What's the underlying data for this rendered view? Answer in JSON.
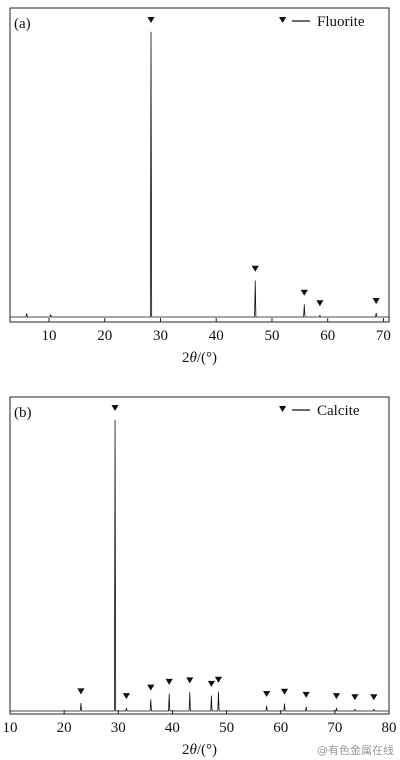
{
  "chart_data": [
    {
      "type": "line",
      "panel_label": "(a)",
      "xlabel": "2θ/(°)",
      "xlabel_parts": [
        "2",
        "θ",
        "/(°)"
      ],
      "xlim": [
        3,
        71
      ],
      "ylim": [
        0,
        100
      ],
      "x_ticks": [
        10,
        20,
        30,
        40,
        50,
        60,
        70
      ],
      "legend": {
        "label": "Fluorite",
        "placement": "top-right"
      },
      "background_peaks": [
        {
          "x": 6.0,
          "y": 1.2
        },
        {
          "x": 10.3,
          "y": 0.8
        }
      ],
      "series": [
        {
          "marker": "triangle-down",
          "peaks": [
            {
              "x": 28.3,
              "y": 100
            },
            {
              "x": 47.0,
              "y": 12.7
            },
            {
              "x": 55.8,
              "y": 4.3
            },
            {
              "x": 58.6,
              "y": 0.6
            },
            {
              "x": 68.7,
              "y": 1.4
            }
          ]
        }
      ]
    },
    {
      "type": "line",
      "panel_label": "(b)",
      "xlabel": "2θ/(°)",
      "xlabel_parts": [
        "2",
        "θ",
        "/(°)"
      ],
      "xlim": [
        10,
        80
      ],
      "ylim": [
        0,
        100
      ],
      "x_ticks": [
        10,
        20,
        30,
        40,
        50,
        60,
        70,
        80
      ],
      "legend": {
        "label": "Calcite",
        "placement": "top-right"
      },
      "background_peaks": [],
      "series": [
        {
          "marker": "triangle-down",
          "peaks": [
            {
              "x": 23.1,
              "y": 2.6
            },
            {
              "x": 29.4,
              "y": 100
            },
            {
              "x": 31.5,
              "y": 1.0
            },
            {
              "x": 36.0,
              "y": 3.9
            },
            {
              "x": 39.4,
              "y": 5.9
            },
            {
              "x": 43.2,
              "y": 6.4
            },
            {
              "x": 47.2,
              "y": 5.2
            },
            {
              "x": 48.5,
              "y": 6.6
            },
            {
              "x": 57.4,
              "y": 1.7
            },
            {
              "x": 60.7,
              "y": 2.5
            },
            {
              "x": 64.7,
              "y": 1.4
            },
            {
              "x": 70.3,
              "y": 1.0
            },
            {
              "x": 73.7,
              "y": 0.6
            },
            {
              "x": 77.2,
              "y": 0.6
            }
          ]
        }
      ]
    }
  ],
  "watermark": "@有色金属在线"
}
